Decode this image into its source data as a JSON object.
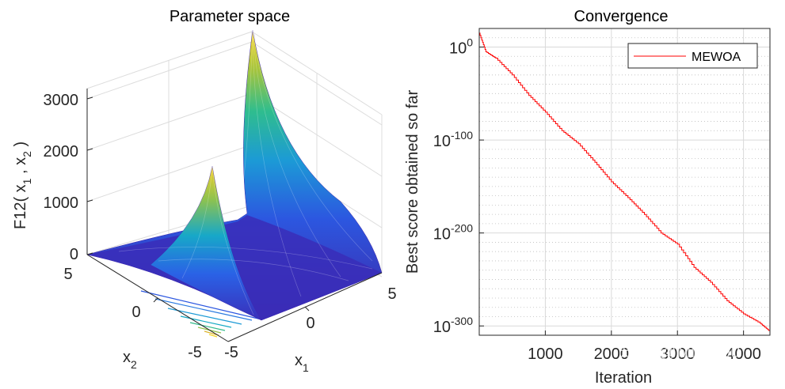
{
  "watermark": "知乎 @Missyou",
  "chart_data": [
    {
      "type": "surface3d",
      "title": "Parameter space",
      "function": "F12",
      "xlabel": "x",
      "xlabel_sub": "1",
      "ylabel": "x",
      "ylabel_sub": "2",
      "zlabel_parts": [
        "F12( x",
        "1",
        " , x",
        "2",
        " )"
      ],
      "xlim": [
        -5,
        5
      ],
      "ylim": [
        -5,
        5
      ],
      "zlim": [
        0,
        3500
      ],
      "x_ticks": [
        "-5",
        "0",
        "5"
      ],
      "y_ticks": [
        "5",
        "0",
        "-5"
      ],
      "z_ticks": [
        "0",
        "1000",
        "2000",
        "3000"
      ],
      "peak_value": 3500,
      "secondary_peak_value": 2350,
      "colormap": [
        "#3e26a8",
        "#2c57e0",
        "#1c83dc",
        "#14a9c4",
        "#32ba8c",
        "#91c148",
        "#ddb52f",
        "#f5d625",
        "#f9fb0e"
      ]
    },
    {
      "type": "line",
      "title": "Convergence",
      "xlabel": "Iteration",
      "ylabel": "Best score obtained so far",
      "yscale": "log",
      "xlim": [
        0,
        4400
      ],
      "ylim_exp": [
        -310,
        20
      ],
      "x_ticks": [
        "1000",
        "2000",
        "3000",
        "4000"
      ],
      "x_tick_values": [
        1000,
        2000,
        3000,
        4000
      ],
      "y_ticks_base": "10",
      "y_ticks_exp": [
        "0",
        "-100",
        "-200",
        "-300"
      ],
      "y_tick_values_exp": [
        0,
        -100,
        -200,
        -300
      ],
      "grid": true,
      "legend_position": "top-right",
      "series": [
        {
          "name": "MEWOA",
          "color": "#ff0000",
          "x": [
            0,
            100,
            250,
            500,
            750,
            1000,
            1250,
            1500,
            1750,
            2000,
            2250,
            2500,
            2750,
            3000,
            3250,
            3500,
            3750,
            4000,
            4250,
            4400
          ],
          "log10_y": [
            15,
            -5,
            -12,
            -30,
            -52,
            -70,
            -90,
            -104,
            -124,
            -145,
            -162,
            -180,
            -200,
            -212,
            -237,
            -253,
            -273,
            -287,
            -297,
            -306
          ]
        }
      ]
    }
  ]
}
